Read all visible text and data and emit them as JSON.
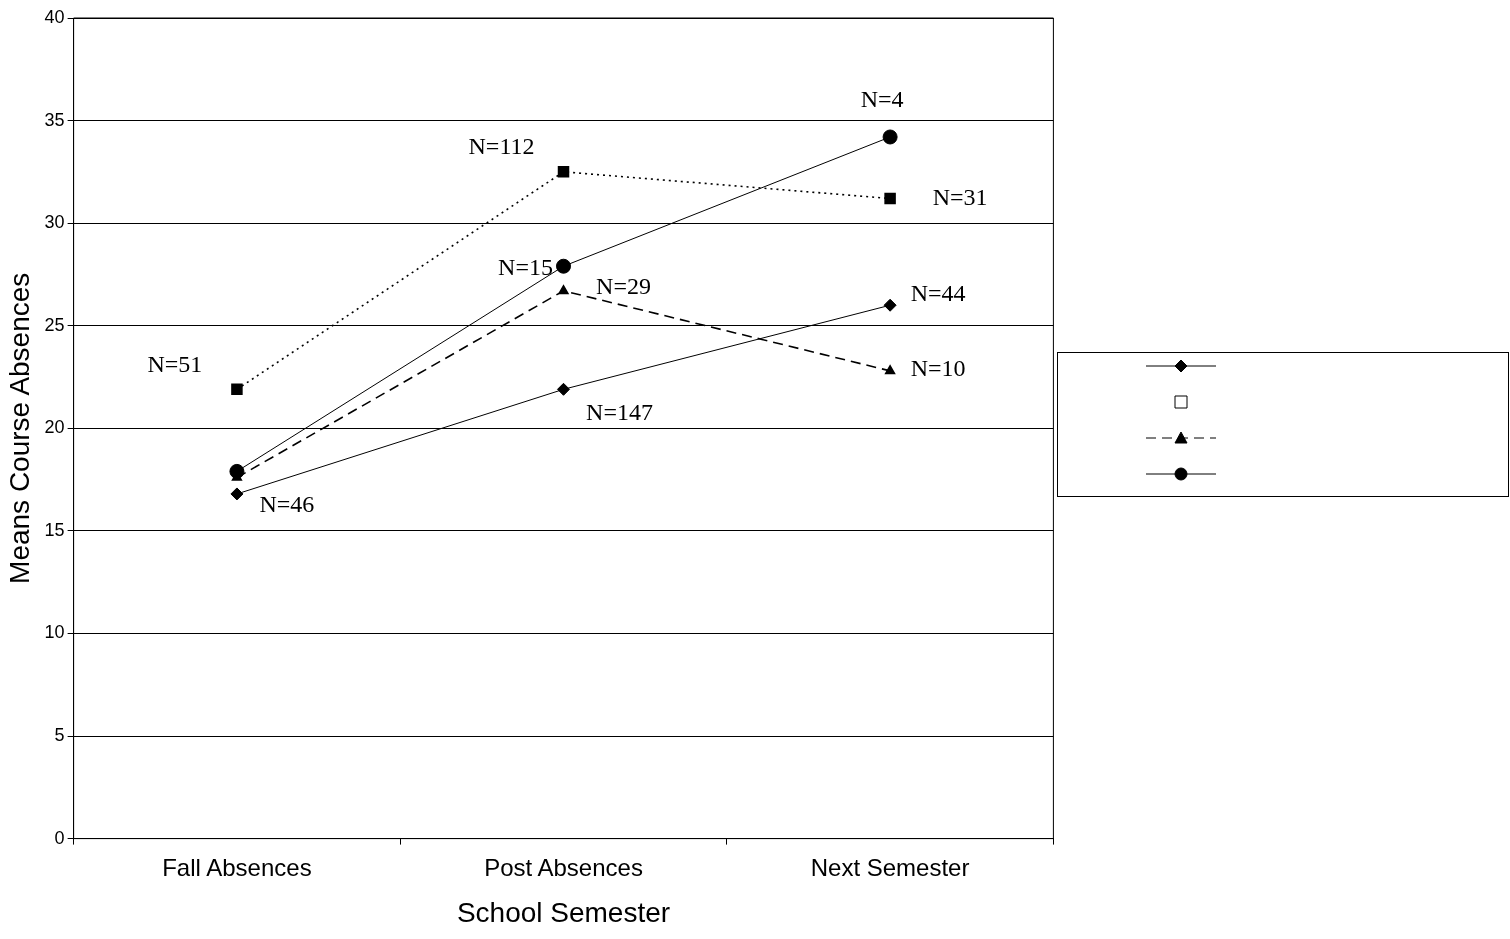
{
  "chart_data": {
    "type": "line",
    "xlabel": "School Semester",
    "ylabel": "Means Course Absences",
    "categories": [
      "Fall Absences",
      "Post Absences",
      "Next Semester"
    ],
    "ylim": [
      0,
      40
    ],
    "yticks": [
      0,
      5,
      10,
      15,
      20,
      25,
      30,
      35,
      40
    ],
    "grid": "y",
    "series": [
      {
        "color": "#000000",
        "marker": "diamond",
        "line_style": "solid",
        "values": [
          16.8,
          21.9,
          26.0
        ]
      },
      {
        "color": "#000000",
        "marker": "square",
        "line_style": "dotted",
        "values": [
          21.9,
          32.5,
          31.2
        ]
      },
      {
        "color": "#000000",
        "marker": "triangle",
        "line_style": "dashed",
        "values": [
          17.6,
          26.7,
          22.8
        ]
      },
      {
        "color": "#000000",
        "marker": "circle",
        "line_style": "solid",
        "values": [
          17.9,
          27.9,
          34.2
        ]
      }
    ],
    "annotations": [
      {
        "text": "N=51",
        "x": "Fall Absences",
        "y": 21.9
      },
      {
        "text": "N=46",
        "x": "Fall Absences",
        "y": 16.8
      },
      {
        "text": "N=112",
        "x": "Post Absences",
        "y": 32.5
      },
      {
        "text": "N=15",
        "x": "Post Absences",
        "y": 27.9
      },
      {
        "text": "N=29",
        "x": "Post Absences",
        "y": 26.7
      },
      {
        "text": "N=147",
        "x": "Post Absences",
        "y": 21.9
      },
      {
        "text": "N=4",
        "x": "Next Semester",
        "y": 34.2
      },
      {
        "text": "N=31",
        "x": "Next Semester",
        "y": 31.2
      },
      {
        "text": "N=44",
        "x": "Next Semester",
        "y": 26.0
      },
      {
        "text": "N=10",
        "x": "Next Semester",
        "y": 22.8
      }
    ]
  }
}
